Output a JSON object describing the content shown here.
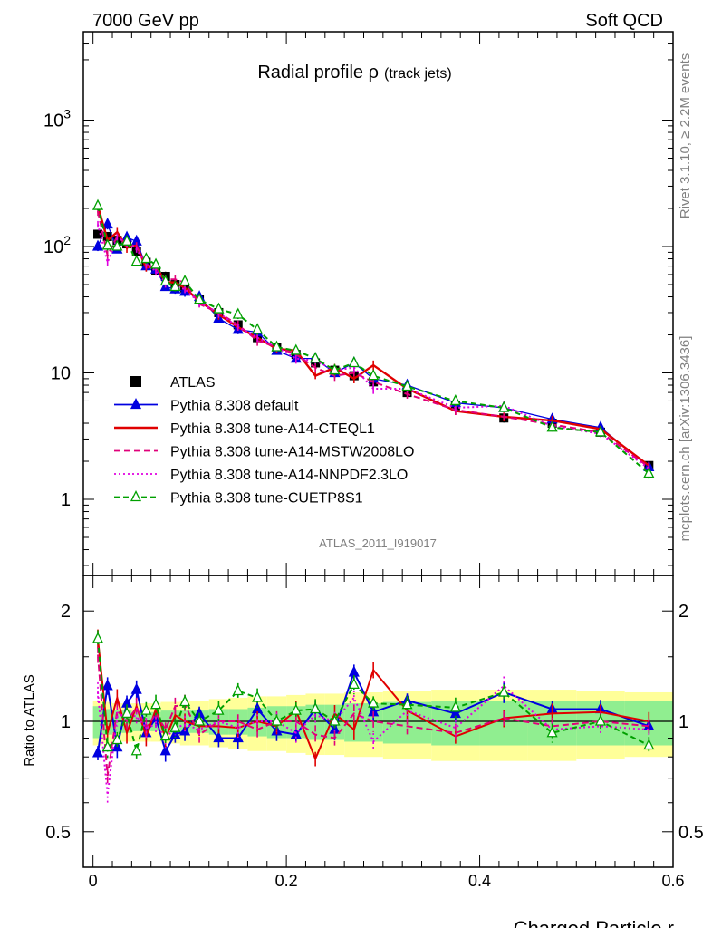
{
  "header": {
    "left": "7000 GeV pp",
    "right": "Soft QCD"
  },
  "side_labels": {
    "rivet": "Rivet 3.1.10, ≥ 2.2M events",
    "mcplots": "mcplots.cern.ch [arXiv:1306.3436]"
  },
  "chart_data": [
    {
      "type": "scatter",
      "panel": "main",
      "title": "Radial profile ρ",
      "title_main": "Radial profile ρ",
      "title_sub": "(track jets)",
      "analysis_id": "ATLAS_2011_I919017",
      "y_scale": "log",
      "xlim": [
        -0.01,
        0.6
      ],
      "ylim": [
        0.25,
        5000
      ],
      "x_ticks": [
        "0",
        "0.2",
        "0.4",
        "0.6"
      ],
      "y_tick_labels": [
        "1",
        "10",
        "10^2",
        "10^3"
      ],
      "legend_position": "middle-left",
      "x": [
        0.005,
        0.015,
        0.025,
        0.035,
        0.045,
        0.055,
        0.065,
        0.075,
        0.085,
        0.095,
        0.11,
        0.13,
        0.15,
        0.17,
        0.19,
        0.21,
        0.23,
        0.25,
        0.27,
        0.29,
        0.325,
        0.375,
        0.425,
        0.475,
        0.525,
        0.575
      ],
      "series": [
        {
          "name": "ATLAS",
          "style": "marker-square",
          "color": "#000000",
          "values": [
            125,
            120,
            112,
            105,
            92,
            75,
            65,
            58,
            50,
            47,
            38,
            30,
            24,
            19,
            16,
            14,
            12,
            10.5,
            9.5,
            8.5,
            7.0,
            5.5,
            4.4,
            4.0,
            3.4,
            1.85
          ]
        },
        {
          "name": "Pythia 8.308 default",
          "style": "line-triangle",
          "color": "#0000e0",
          "values": [
            100,
            150,
            95,
            118,
            110,
            70,
            66,
            48,
            46,
            44,
            40,
            27,
            22,
            21,
            15,
            13,
            13,
            10,
            12,
            9,
            8,
            5.8,
            5.3,
            4.3,
            3.7,
            1.8
          ]
        },
        {
          "name": "Pythia 8.308 tune-A14-CTEQL1",
          "style": "line-solid",
          "color": "#e00000",
          "values": [
            210,
            112,
            130,
            98,
            102,
            68,
            70,
            52,
            52,
            47,
            37,
            29,
            23,
            19,
            15.5,
            15,
            9.5,
            11,
            9,
            11.5,
            7.5,
            5.0,
            4.5,
            4.2,
            3.6,
            1.85
          ]
        },
        {
          "name": "Pythia 8.308 tune-A14-MSTW2008LO",
          "style": "line-dashed",
          "color": "#e0007a",
          "values": [
            190,
            85,
            120,
            105,
            100,
            72,
            68,
            55,
            55,
            52,
            35,
            30,
            24,
            18,
            16,
            14,
            11,
            9.5,
            10,
            8.5,
            6.8,
            5.1,
            4.5,
            3.9,
            3.4,
            1.8
          ]
        },
        {
          "name": "Pythia 8.308 tune-A14-NNPDF2.3LO",
          "style": "line-dotted",
          "color": "#e000e0",
          "values": [
            150,
            75,
            115,
            110,
            95,
            72,
            64,
            52,
            48,
            46,
            36,
            30,
            23,
            19,
            16,
            13,
            12.5,
            10.5,
            11,
            7.5,
            7.5,
            5.3,
            5.5,
            3.8,
            3.3,
            1.75
          ]
        },
        {
          "name": "Pythia 8.308 tune-CUETP8S1",
          "style": "line-dashed-open-triangle",
          "color": "#00a000",
          "values": [
            210,
            102,
            100,
            110,
            76,
            80,
            72,
            53,
            48,
            53,
            38,
            32,
            29,
            22,
            16,
            15,
            13,
            10.5,
            12,
            9.5,
            7.8,
            6.0,
            5.3,
            3.7,
            3.4,
            1.6
          ]
        }
      ]
    },
    {
      "type": "line",
      "panel": "ratio",
      "ylabel": "Ratio to ATLAS",
      "xlabel": "Charged Particle r",
      "y_scale": "log",
      "xlim": [
        -0.01,
        0.6
      ],
      "ylim": [
        0.4,
        2.5
      ],
      "y_ticks": [
        "0.5",
        "1",
        "2"
      ],
      "x_ticks": [
        "0",
        "0.2",
        "0.4",
        "0.6"
      ],
      "x": [
        0.005,
        0.015,
        0.025,
        0.035,
        0.045,
        0.055,
        0.065,
        0.075,
        0.085,
        0.095,
        0.11,
        0.13,
        0.15,
        0.17,
        0.19,
        0.21,
        0.23,
        0.25,
        0.27,
        0.29,
        0.325,
        0.375,
        0.425,
        0.475,
        0.525,
        0.575
      ],
      "band_edges": [
        0.0,
        0.01,
        0.02,
        0.03,
        0.04,
        0.05,
        0.06,
        0.07,
        0.08,
        0.09,
        0.1,
        0.12,
        0.14,
        0.16,
        0.18,
        0.2,
        0.22,
        0.24,
        0.26,
        0.28,
        0.3,
        0.35,
        0.4,
        0.45,
        0.5,
        0.55,
        0.6
      ],
      "band_inner_lo": [
        0.9,
        0.92,
        0.93,
        0.93,
        0.94,
        0.94,
        0.94,
        0.93,
        0.93,
        0.93,
        0.93,
        0.92,
        0.92,
        0.91,
        0.9,
        0.9,
        0.89,
        0.89,
        0.88,
        0.88,
        0.87,
        0.86,
        0.86,
        0.86,
        0.86,
        0.86
      ],
      "band_inner_hi": [
        1.1,
        1.08,
        1.07,
        1.07,
        1.06,
        1.06,
        1.06,
        1.07,
        1.07,
        1.07,
        1.07,
        1.08,
        1.08,
        1.09,
        1.1,
        1.1,
        1.11,
        1.11,
        1.12,
        1.12,
        1.13,
        1.14,
        1.14,
        1.14,
        1.14,
        1.14
      ],
      "band_outer_lo": [
        0.86,
        0.87,
        0.88,
        0.88,
        0.88,
        0.88,
        0.88,
        0.87,
        0.87,
        0.86,
        0.86,
        0.85,
        0.84,
        0.83,
        0.83,
        0.82,
        0.81,
        0.81,
        0.8,
        0.8,
        0.79,
        0.78,
        0.78,
        0.78,
        0.79,
        0.8
      ],
      "band_outer_hi": [
        1.14,
        1.13,
        1.12,
        1.12,
        1.12,
        1.12,
        1.12,
        1.13,
        1.13,
        1.14,
        1.14,
        1.15,
        1.16,
        1.17,
        1.17,
        1.18,
        1.19,
        1.19,
        1.2,
        1.2,
        1.21,
        1.22,
        1.22,
        1.22,
        1.21,
        1.2
      ],
      "band_colors": {
        "inner": "#90ee90",
        "outer": "#ffff99"
      },
      "series": [
        {
          "name": "Pythia 8.308 default",
          "color": "#0000e0",
          "dash": "",
          "marker": "filled-triangle",
          "values": [
            0.82,
            1.25,
            0.85,
            1.12,
            1.22,
            0.93,
            1.02,
            0.83,
            0.92,
            0.94,
            1.05,
            0.9,
            0.9,
            1.08,
            0.94,
            0.92,
            1.08,
            0.95,
            1.36,
            1.06,
            1.14,
            1.05,
            1.2,
            1.08,
            1.08,
            0.97
          ]
        },
        {
          "name": "Pythia 8.308 tune-A14-CTEQL1",
          "color": "#e00000",
          "dash": "",
          "marker": "",
          "values": [
            1.68,
            0.93,
            1.16,
            0.93,
            1.1,
            0.91,
            1.08,
            0.9,
            1.04,
            1.0,
            0.97,
            0.97,
            0.96,
            1.0,
            0.97,
            1.07,
            0.79,
            1.05,
            0.95,
            1.38,
            1.07,
            0.91,
            1.02,
            1.05,
            1.06,
            1.0
          ]
        },
        {
          "name": "Pythia 8.308 tune-A14-MSTW2008LO",
          "color": "#e0007a",
          "dash": "7,4",
          "marker": "",
          "values": [
            1.52,
            0.71,
            1.07,
            1.0,
            1.09,
            0.96,
            1.05,
            0.95,
            1.1,
            1.11,
            0.92,
            1.0,
            1.0,
            0.95,
            1.0,
            1.0,
            0.92,
            0.9,
            1.05,
            1.0,
            0.97,
            0.93,
            1.02,
            0.97,
            1.0,
            0.97
          ]
        },
        {
          "name": "Pythia 8.308 tune-A14-NNPDF2.3LO",
          "color": "#e000e0",
          "dash": "2,3",
          "marker": "",
          "values": [
            1.2,
            0.63,
            1.03,
            1.05,
            1.03,
            0.96,
            0.98,
            0.9,
            0.96,
            0.98,
            0.95,
            1.0,
            0.96,
            1.0,
            1.0,
            0.93,
            1.04,
            1.0,
            1.16,
            0.88,
            1.07,
            0.96,
            1.25,
            0.95,
            0.97,
            0.95
          ]
        },
        {
          "name": "Pythia 8.308 tune-CUETP8S1",
          "color": "#00a000",
          "dash": "6,4",
          "marker": "open-triangle",
          "values": [
            1.68,
            0.85,
            0.89,
            1.05,
            0.83,
            1.07,
            1.11,
            0.91,
            0.96,
            1.13,
            1.0,
            1.07,
            1.21,
            1.16,
            1.0,
            1.07,
            1.08,
            1.0,
            1.26,
            1.12,
            1.11,
            1.09,
            1.2,
            0.93,
            1.0,
            0.86
          ]
        }
      ]
    }
  ]
}
